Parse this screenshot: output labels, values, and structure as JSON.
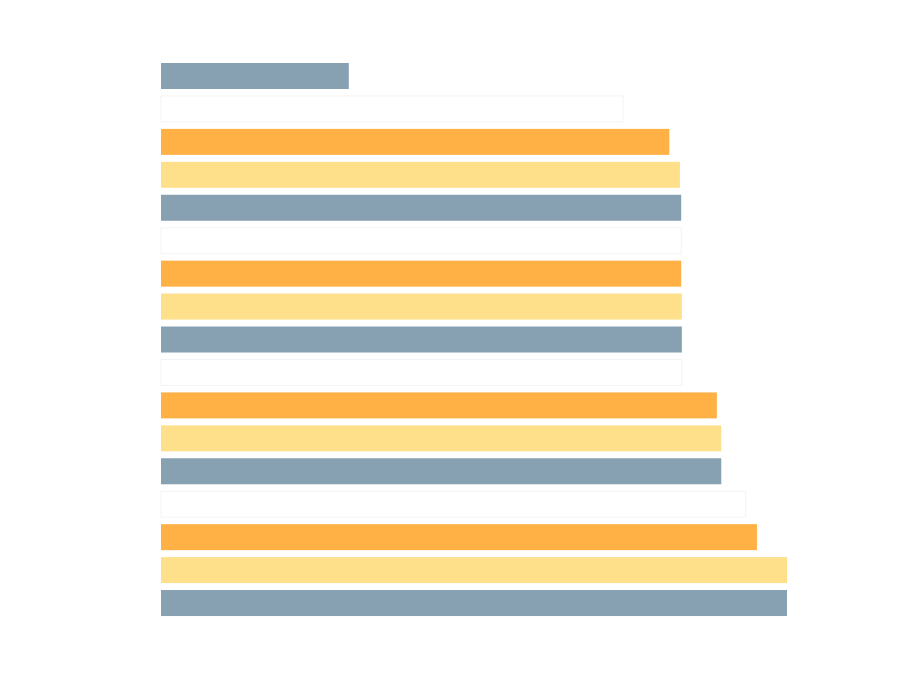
{
  "chart_data": {
    "type": "bar",
    "orientation": "horizontal",
    "title": "",
    "xlabel": "",
    "ylabel": "",
    "axes_visible": false,
    "grid": false,
    "legend": "none",
    "xlim": [
      0,
      100
    ],
    "palette": [
      "#87a0b2",
      "#ffffff",
      "#ffb145",
      "#fee08b"
    ],
    "bars": [
      {
        "value": 30.0,
        "color": "#87a0b2"
      },
      {
        "value": 73.8,
        "color": "#ffffff"
      },
      {
        "value": 81.2,
        "color": "#ffb145"
      },
      {
        "value": 82.9,
        "color": "#fee08b"
      },
      {
        "value": 83.1,
        "color": "#87a0b2"
      },
      {
        "value": 83.1,
        "color": "#ffffff"
      },
      {
        "value": 83.1,
        "color": "#ffb145"
      },
      {
        "value": 83.2,
        "color": "#fee08b"
      },
      {
        "value": 83.2,
        "color": "#87a0b2"
      },
      {
        "value": 83.2,
        "color": "#ffffff"
      },
      {
        "value": 88.8,
        "color": "#ffb145"
      },
      {
        "value": 89.5,
        "color": "#fee08b"
      },
      {
        "value": 89.5,
        "color": "#87a0b2"
      },
      {
        "value": 93.4,
        "color": "#ffffff"
      },
      {
        "value": 95.2,
        "color": "#ffb145"
      },
      {
        "value": 100.0,
        "color": "#fee08b"
      },
      {
        "value": 100.0,
        "color": "#87a0b2"
      }
    ]
  }
}
